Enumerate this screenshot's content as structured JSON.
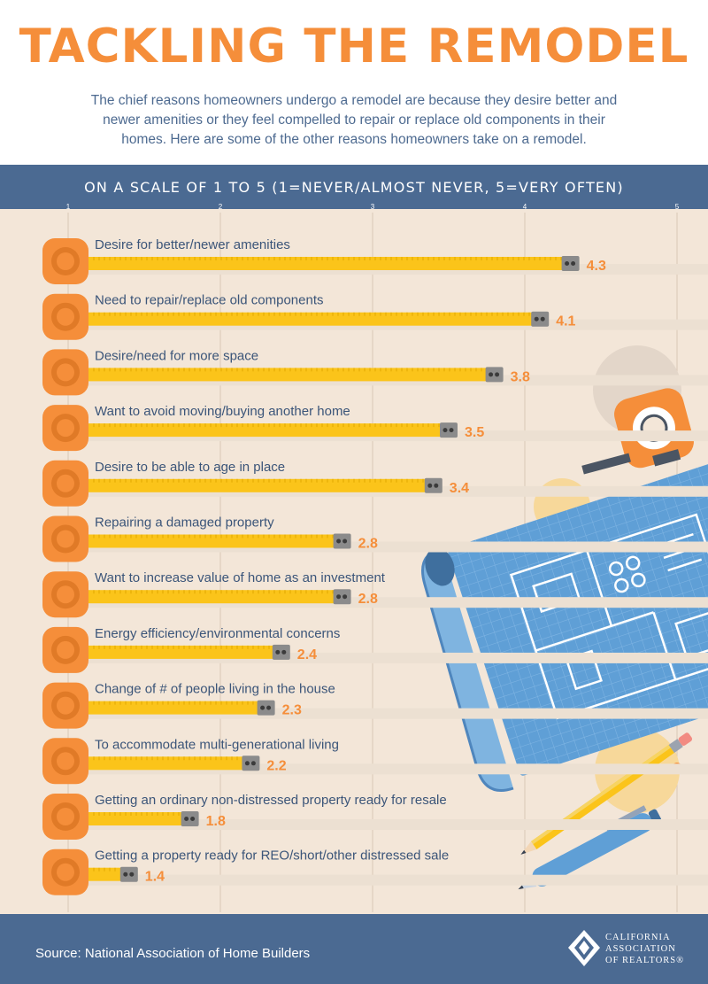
{
  "title": "TACKLING THE REMODEL",
  "intro": "The chief reasons homeowners undergo a remodel are because they desire better and newer amenities or they feel compelled to repair or replace old components in their homes. Here are some of the other reasons homeowners take on a remodel.",
  "footer": {
    "source": "Source: National Association of Home Builders",
    "logo_lines": [
      "CALIFORNIA",
      "ASSOCIATION",
      "OF REALTORS®"
    ]
  },
  "colors": {
    "title": "#f58e3a",
    "band": "#4b6a92",
    "background": "#f3e6d8",
    "bar": "#fbc41a",
    "value_label": "#f58e3a",
    "blueprint": "#5f9fd6"
  },
  "chart_data": {
    "type": "bar",
    "orientation": "horizontal",
    "title": "ON A SCALE OF 1 TO 5 (1=NEVER/ALMOST NEVER, 5=VERY OFTEN)",
    "xlim": [
      1,
      5
    ],
    "ticks": [
      "1",
      "2",
      "3",
      "4",
      "5"
    ],
    "grid": true,
    "categories": [
      "Desire for better/newer amenities",
      "Need to repair/replace old components",
      "Desire/need for more space",
      "Want to avoid moving/buying another home",
      "Desire to be able to age in place",
      "Repairing a damaged property",
      "Want to increase value of home as an investment",
      "Energy efficiency/environmental concerns",
      "Change of # of people living in the house",
      "To accommodate multi-generational living",
      "Getting an ordinary non-distressed property ready for resale",
      "Getting a property ready for REO/short/other distressed sale"
    ],
    "values": [
      4.3,
      4.1,
      3.8,
      3.5,
      3.4,
      2.8,
      2.8,
      2.4,
      2.3,
      2.2,
      1.8,
      1.4
    ],
    "value_labels": [
      "4.3",
      "4.1",
      "3.8",
      "3.5",
      "3.4",
      "2.8",
      "2.8",
      "2.4",
      "2.3",
      "2.2",
      "1.8",
      "1.4"
    ]
  }
}
